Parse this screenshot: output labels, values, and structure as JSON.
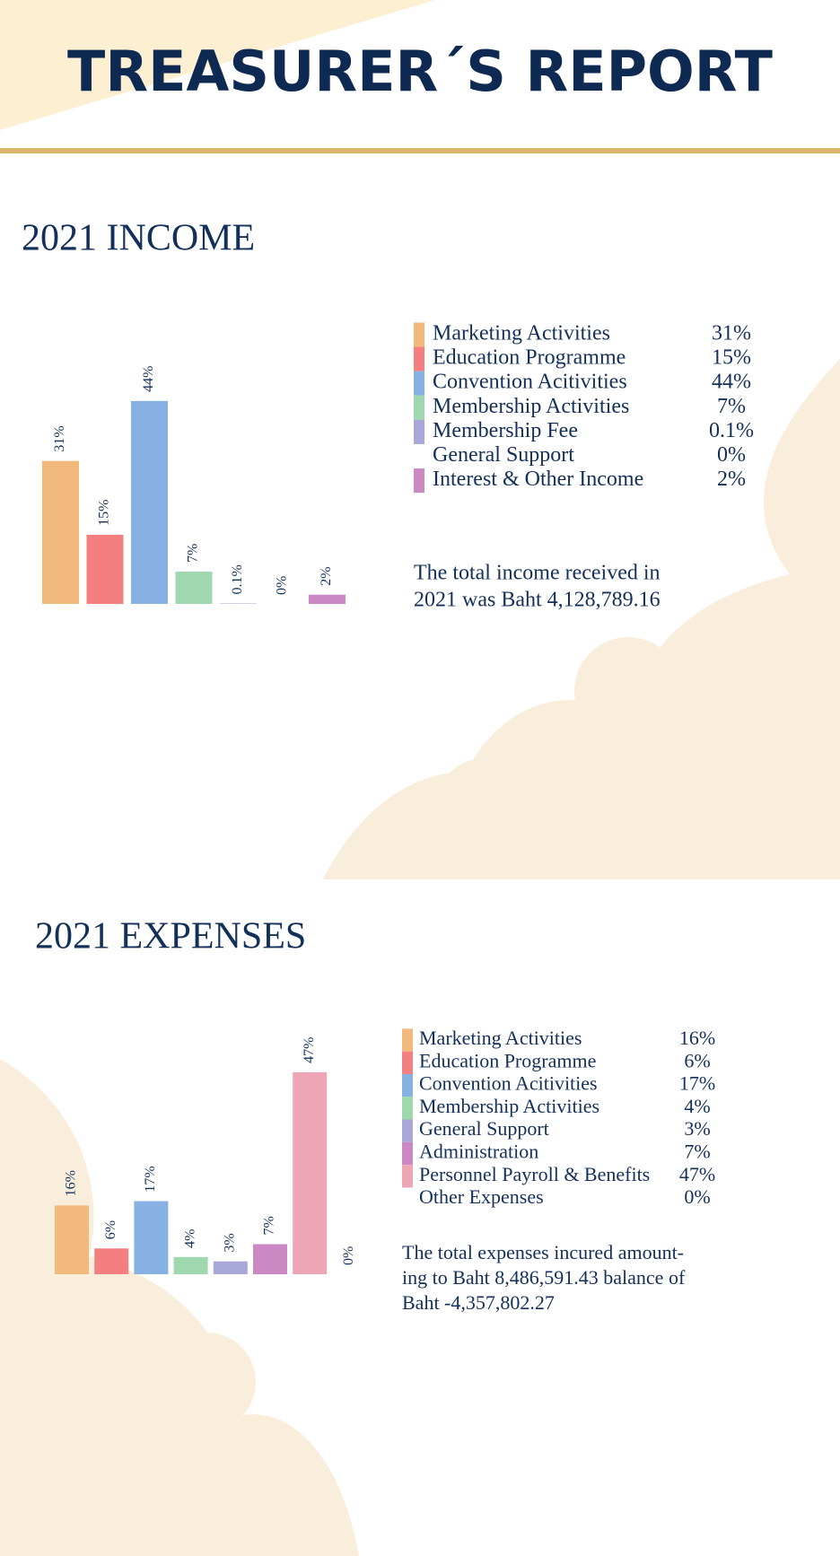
{
  "title": "TREASURER´S REPORT",
  "chart_data": [
    {
      "type": "bar",
      "title": "2021 INCOME",
      "categories": [
        "Marketing Activities",
        "Education Programme",
        "Convention Acitivities",
        "Membership Activities",
        "Membership Fee",
        "General Support",
        "Interest & Other Income"
      ],
      "values": [
        31,
        15,
        44,
        7,
        0.1,
        0,
        2
      ],
      "value_labels": [
        "31%",
        "15%",
        "44%",
        "7%",
        "0.1%",
        "0%",
        "2%"
      ],
      "colors": [
        "#f2b97c",
        "#f47f80",
        "#86b1e2",
        "#9fd7ae",
        "#a9a6d8",
        null,
        "#cc88c2"
      ],
      "note": [
        "The total income received in",
        "2021 was Baht 4,128,789.16"
      ]
    },
    {
      "type": "bar",
      "title": "2021 EXPENSES",
      "categories": [
        "Marketing Activities",
        "Education Programme",
        "Convention Acitivities",
        "Membership Activities",
        "General Support",
        "Administration",
        "Personnel Payroll & Benefits",
        "Other Expenses"
      ],
      "values": [
        16,
        6,
        17,
        4,
        3,
        7,
        47,
        0
      ],
      "value_labels": [
        "16%",
        "6%",
        "17%",
        "4%",
        "3%",
        "7%",
        "47%",
        "0%"
      ],
      "colors": [
        "#f2b97c",
        "#f47f80",
        "#86b1e2",
        "#9fd7ae",
        "#a9a6d8",
        "#cc88c2",
        "#eda6b5",
        null
      ],
      "note": [
        "The total expenses incured amount-",
        "ing to Baht 8,486,591.43 balance of",
        "Baht -4,357,802.27"
      ]
    }
  ]
}
